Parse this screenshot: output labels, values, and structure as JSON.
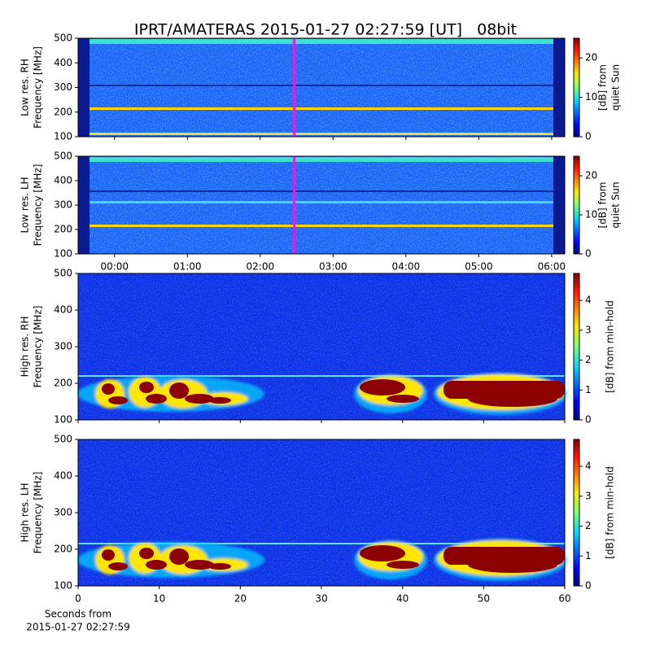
{
  "title": "IPRT/AMATERAS 2015-01-27 02:27:59 [UT]   08bit",
  "chart_data": [
    {
      "type": "heatmap",
      "ylabel": [
        "Low res. RH",
        "Frequency [MHz]"
      ],
      "xlim": [
        -0.5,
        6.18
      ],
      "ylim": [
        100,
        500
      ],
      "yticks": [
        100,
        200,
        300,
        400,
        500
      ],
      "clim": [
        0,
        25
      ],
      "cticks": [
        0,
        10,
        20
      ],
      "colorbar_label": [
        "[dB] from",
        "quiet Sun"
      ],
      "cursor": 2.4664,
      "cursor_color": "#e020e0"
    },
    {
      "type": "heatmap",
      "ylabel": [
        "Low res. LH",
        "Frequency [MHz]"
      ],
      "xlim": [
        -0.5,
        6.18
      ],
      "ylim": [
        100,
        500
      ],
      "yticks": [
        100,
        200,
        300,
        400,
        500
      ],
      "xticks": [
        {
          "value": 0,
          "label": "00:00"
        },
        {
          "value": 1,
          "label": "01:00"
        },
        {
          "value": 2,
          "label": "02:00"
        },
        {
          "value": 3,
          "label": "03:00"
        },
        {
          "value": 4,
          "label": "04:00"
        },
        {
          "value": 5,
          "label": "05:00"
        },
        {
          "value": 6,
          "label": "06:00"
        }
      ],
      "clim": [
        0,
        25
      ],
      "cticks": [
        0,
        10,
        20
      ],
      "colorbar_label": [
        "[dB] from",
        "quiet Sun"
      ],
      "cursor": 2.4664,
      "cursor_color": "#e020e0"
    },
    {
      "type": "heatmap",
      "ylabel": [
        "High res. RH",
        "Frequency [MHz]"
      ],
      "xlim": [
        0,
        60
      ],
      "ylim": [
        100,
        500
      ],
      "yticks": [
        100,
        200,
        300,
        400,
        500
      ],
      "clim": [
        0,
        4.9
      ],
      "cticks": [
        0,
        1,
        2,
        3,
        4
      ],
      "colorbar_label": [
        "[dB] from min-hold"
      ]
    },
    {
      "type": "heatmap",
      "ylabel": [
        "High res. LH",
        "Frequency [MHz]"
      ],
      "xlim": [
        0,
        60
      ],
      "ylim": [
        100,
        500
      ],
      "yticks": [
        100,
        200,
        300,
        400,
        500
      ],
      "xticks": [
        0,
        10,
        20,
        30,
        40,
        50,
        60
      ],
      "xlabel": [
        "Seconds from",
        "2015-01-27 02:27:59"
      ],
      "clim": [
        0,
        4.9
      ],
      "cticks": [
        0,
        1,
        2,
        3,
        4
      ],
      "colorbar_label": [
        "[dB] from min-hold"
      ]
    }
  ]
}
